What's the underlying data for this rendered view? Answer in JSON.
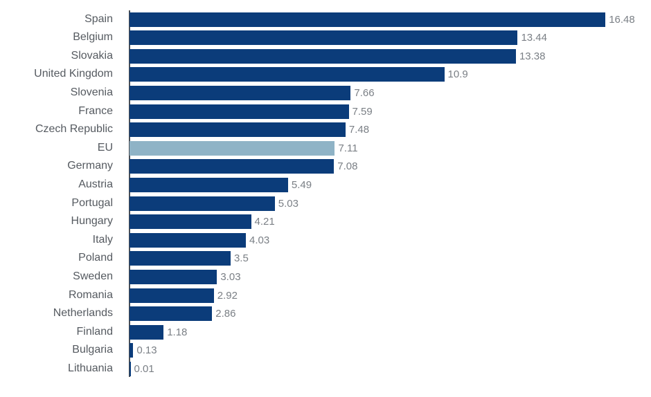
{
  "chart_data": {
    "type": "bar",
    "orientation": "horizontal",
    "title": "",
    "xlabel": "",
    "ylabel": "",
    "grid": false,
    "legend": null,
    "xlim": [
      0,
      16.48
    ],
    "categories": [
      "Spain",
      "Belgium",
      "Slovakia",
      "United Kingdom",
      "Slovenia",
      "France",
      "Czech Republic",
      "EU",
      "Germany",
      "Austria",
      "Portugal",
      "Hungary",
      "Italy",
      "Poland",
      "Sweden",
      "Romania",
      "Netherlands",
      "Finland",
      "Bulgaria",
      "Lithuania"
    ],
    "values": [
      16.48,
      13.44,
      13.38,
      10.9,
      7.66,
      7.59,
      7.48,
      7.11,
      7.08,
      5.49,
      5.03,
      4.21,
      4.03,
      3.5,
      3.03,
      2.92,
      2.86,
      1.18,
      0.13,
      0.01
    ],
    "value_labels": [
      "16.48",
      "13.44",
      "13.38",
      "10.9",
      "7.66",
      "7.59",
      "7.48",
      "7.11",
      "7.08",
      "5.49",
      "5.03",
      "4.21",
      "4.03",
      "3.5",
      "3.03",
      "2.92",
      "2.86",
      "1.18",
      "0.13",
      "0.01"
    ],
    "highlight_category": "EU",
    "colors": {
      "bar": "#0b3c7a",
      "highlight": "#8fb3c6",
      "label": "#555a60",
      "value": "#7a7f85"
    }
  }
}
